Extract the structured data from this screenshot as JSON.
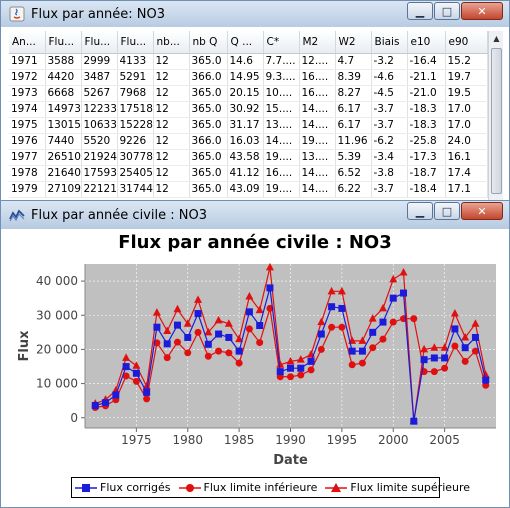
{
  "window_table": {
    "title": "Flux par année: NO3",
    "columns": [
      "An...",
      "Flu...",
      "Flu...",
      "Flu...",
      "nb...",
      "nb Q",
      "Q ...",
      "C*",
      "M2",
      "W2",
      "Biais",
      "e10",
      "e90"
    ],
    "rows": [
      [
        "1971",
        "3588",
        "2999",
        "4133",
        "12",
        "365.0",
        "14.6",
        "7.7....",
        "12....",
        "4.7",
        "-3.2",
        "-16.4",
        "15.2"
      ],
      [
        "1972",
        "4420",
        "3487",
        "5291",
        "12",
        "366.0",
        "14.95",
        "9.3....",
        "16....",
        "8.39",
        "-4.6",
        "-21.1",
        "19.7"
      ],
      [
        "1973",
        "6668",
        "5267",
        "7968",
        "12",
        "365.0",
        "20.15",
        "10....",
        "16....",
        "8.27",
        "-4.5",
        "-21.0",
        "19.5"
      ],
      [
        "1974",
        "14973",
        "12233",
        "17518",
        "12",
        "365.0",
        "30.92",
        "15....",
        "14....",
        "6.17",
        "-3.7",
        "-18.3",
        "17.0"
      ],
      [
        "1975",
        "13015",
        "10633",
        "15228",
        "12",
        "365.0",
        "31.17",
        "13....",
        "14....",
        "6.17",
        "-3.7",
        "-18.3",
        "17.0"
      ],
      [
        "1976",
        "7440",
        "5520",
        "9226",
        "12",
        "366.0",
        "16.03",
        "14....",
        "19....",
        "11.96",
        "-6.2",
        "-25.8",
        "24.0"
      ],
      [
        "1977",
        "26510",
        "21924",
        "30778",
        "12",
        "365.0",
        "43.58",
        "19....",
        "13....",
        "5.39",
        "-3.4",
        "-17.3",
        "16.1"
      ],
      [
        "1978",
        "21640",
        "17593",
        "25405",
        "12",
        "365.0",
        "41.12",
        "16....",
        "14....",
        "6.52",
        "-3.8",
        "-18.7",
        "17.4"
      ],
      [
        "1979",
        "27109",
        "22121",
        "31744",
        "12",
        "365.0",
        "43.09",
        "19....",
        "14....",
        "6.22",
        "-3.7",
        "-18.4",
        "17.1"
      ]
    ]
  },
  "window_chart": {
    "title": "Flux par année civile : NO3"
  },
  "colors": {
    "plot_background": "#c0c0c0",
    "series_corriges": "#1b1bd9",
    "series_inf": "#e01010",
    "series_sup": "#e01010"
  },
  "chart_data": {
    "type": "line",
    "title": "Flux par année civile : NO3",
    "xlabel": "Date",
    "ylabel": "Flux",
    "xlim": [
      1970,
      2010
    ],
    "ylim": [
      -3000,
      45000
    ],
    "x_ticks": [
      1975,
      1980,
      1985,
      1990,
      1995,
      2000,
      2005
    ],
    "y_ticks": [
      0,
      10000,
      20000,
      30000,
      40000
    ],
    "y_tick_labels": [
      "0",
      "10 000",
      "20 000",
      "30 000",
      "40 000"
    ],
    "grid": true,
    "legend_position": "bottom",
    "x": [
      1971,
      1972,
      1973,
      1974,
      1975,
      1976,
      1977,
      1978,
      1979,
      1980,
      1981,
      1982,
      1983,
      1984,
      1985,
      1986,
      1987,
      1988,
      1989,
      1990,
      1991,
      1992,
      1993,
      1994,
      1995,
      1996,
      1997,
      1998,
      1999,
      2000,
      2001,
      2002,
      2003,
      2004,
      2005,
      2006,
      2007,
      2008,
      2009
    ],
    "series": [
      {
        "name": "Flux corrigés",
        "marker": "square",
        "values": [
          3588,
          4420,
          6668,
          14973,
          13015,
          7440,
          26510,
          21640,
          27109,
          23500,
          30500,
          21500,
          24500,
          23500,
          19500,
          31000,
          27000,
          38000,
          13500,
          14500,
          14500,
          16500,
          24500,
          32500,
          32000,
          19500,
          19500,
          25000,
          28000,
          35000,
          36500,
          -1000,
          17000,
          17500,
          17500,
          26000,
          20500,
          23500,
          11000
        ]
      },
      {
        "name": "Flux limite inférieure",
        "marker": "circle",
        "values": [
          2999,
          3487,
          5267,
          12233,
          10633,
          5520,
          21924,
          17593,
          22121,
          19000,
          25000,
          18000,
          19500,
          19000,
          16000,
          26000,
          22000,
          32000,
          12000,
          12000,
          12500,
          14000,
          20000,
          26500,
          26500,
          15500,
          16000,
          20500,
          23000,
          28000,
          29000,
          29000,
          13500,
          13500,
          14500,
          21000,
          16500,
          19500,
          9500
        ]
      },
      {
        "name": "Flux limite supérieure",
        "marker": "triangle",
        "values": [
          4133,
          5291,
          7968,
          17518,
          15228,
          9226,
          30778,
          25405,
          31744,
          27500,
          34500,
          25000,
          28500,
          27500,
          23000,
          35500,
          31500,
          44000,
          15500,
          16500,
          17000,
          18500,
          28000,
          37000,
          37000,
          22500,
          22500,
          29000,
          32000,
          40500,
          42500,
          -1000,
          20000,
          20500,
          20500,
          30500,
          23500,
          27500,
          12500
        ]
      }
    ]
  }
}
